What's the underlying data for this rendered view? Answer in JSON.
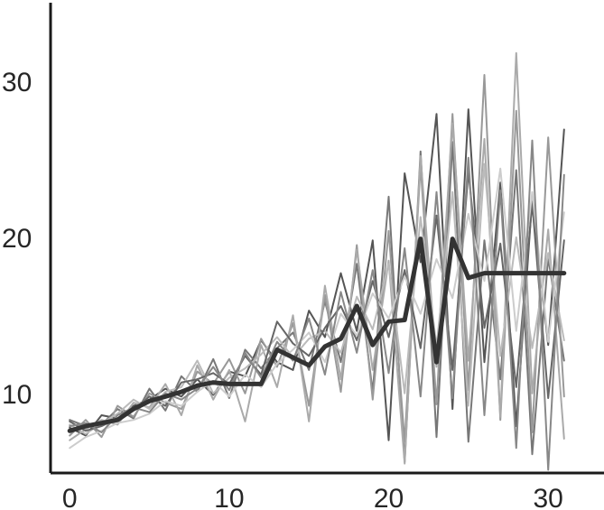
{
  "chart_data": {
    "type": "line",
    "title": "",
    "xlabel": "",
    "ylabel": "",
    "x": [
      0,
      1,
      2,
      3,
      4,
      5,
      6,
      7,
      8,
      9,
      10,
      11,
      12,
      13,
      14,
      15,
      16,
      17,
      18,
      19,
      20,
      21,
      22,
      23,
      24,
      25,
      26,
      27,
      28,
      29,
      30,
      31
    ],
    "xlim": [
      -1.2,
      33.5
    ],
    "ylim": [
      4.9,
      35.2
    ],
    "xticks": [
      0,
      10,
      20,
      30
    ],
    "yticks": [
      10,
      20,
      30
    ],
    "xtick_labels": [
      "0",
      "10",
      "20",
      "30"
    ],
    "ytick_labels": [
      "10",
      "20",
      "30"
    ],
    "grid": false,
    "series": [
      {
        "color": "#333333",
        "width": 5,
        "values": [
          7.6,
          7.9,
          8.1,
          8.3,
          9.0,
          9.5,
          9.8,
          10.1,
          10.5,
          10.7,
          10.6,
          10.6,
          10.6,
          12.8,
          12.3,
          11.8,
          13.0,
          13.5,
          15.6,
          13.1,
          14.6,
          14.7,
          19.9,
          12.0,
          19.9,
          17.4,
          17.7,
          17.7,
          17.7,
          17.7,
          17.7,
          17.7
        ]
      },
      {
        "color": "#555555",
        "width": 2,
        "values": [
          7.8,
          7.3,
          8.6,
          8.4,
          9.2,
          9.6,
          10.3,
          9.8,
          10.9,
          9.9,
          11.4,
          11.1,
          13.4,
          12.0,
          11.5,
          15.3,
          13.6,
          17.7,
          14.0,
          19.8,
          7.0,
          24.1,
          18.4,
          27.9,
          9.0,
          28.2,
          12.0,
          23.5,
          7.9,
          22.5,
          13.1,
          26.9
        ]
      },
      {
        "color": "#777777",
        "width": 2,
        "values": [
          8.3,
          7.9,
          8.0,
          9.0,
          8.4,
          10.3,
          8.9,
          11.1,
          10.1,
          12.2,
          9.7,
          12.8,
          11.6,
          12.9,
          13.9,
          11.5,
          15.9,
          12.0,
          18.3,
          10.1,
          22.6,
          5.6,
          25.5,
          7.2,
          26.1,
          6.9,
          19.8,
          10.9,
          24.3,
          6.1,
          18.7,
          12.1
        ]
      },
      {
        "color": "#999999",
        "width": 2,
        "values": [
          7.3,
          8.3,
          7.2,
          9.2,
          8.5,
          10.0,
          9.4,
          9.0,
          11.4,
          10.6,
          12.2,
          10.0,
          13.5,
          11.7,
          14.5,
          9.2,
          16.3,
          10.1,
          19.5,
          9.6,
          20.4,
          6.9,
          24.6,
          9.3,
          27.9,
          10.2,
          30.4,
          8.3,
          28.1,
          7.5,
          26.4,
          9.8
        ]
      },
      {
        "color": "#aaaaaa",
        "width": 2,
        "values": [
          7.0,
          7.7,
          8.3,
          8.0,
          9.4,
          9.1,
          10.6,
          8.6,
          11.8,
          9.6,
          11.5,
          8.2,
          13.1,
          10.4,
          15.0,
          8.2,
          16.9,
          10.9,
          19.2,
          11.5,
          18.5,
          5.5,
          25.2,
          11.7,
          27.3,
          12.1,
          26.3,
          8.5,
          31.8,
          10.0,
          20.5,
          7.1
        ]
      },
      {
        "color": "#bbbbbb",
        "width": 2,
        "values": [
          8.0,
          7.4,
          8.1,
          8.7,
          9.6,
          9.0,
          10.1,
          10.4,
          12.1,
          10.0,
          11.0,
          11.6,
          12.5,
          13.6,
          12.3,
          13.5,
          14.0,
          12.6,
          16.2,
          14.1,
          18.3,
          10.0,
          21.3,
          13.0,
          22.9,
          9.2,
          24.7,
          12.4,
          20.0,
          12.9,
          19.0,
          13.4
        ]
      },
      {
        "color": "#666666",
        "width": 2,
        "values": [
          8.2,
          7.6,
          7.9,
          8.4,
          8.9,
          9.8,
          9.2,
          10.7,
          10.9,
          11.3,
          10.6,
          12.4,
          11.2,
          14.6,
          13.2,
          12.4,
          14.2,
          15.6,
          13.4,
          17.2,
          13.6,
          17.9,
          12.9,
          21.4,
          11.5,
          24.2,
          14.2,
          19.6,
          10.4,
          22.2,
          9.7,
          19.8
        ]
      },
      {
        "color": "#cccccc",
        "width": 2,
        "values": [
          6.5,
          7.2,
          7.6,
          8.1,
          8.3,
          8.7,
          9.5,
          9.2,
          10.1,
          10.8,
          9.8,
          11.2,
          10.4,
          11.9,
          12.8,
          13.9,
          12.0,
          15.1,
          13.7,
          16.4,
          14.8,
          17.5,
          15.1,
          18.6,
          16.1,
          21.5,
          17.2,
          24.4,
          14.0,
          22.9,
          13.3,
          21.6
        ]
      },
      {
        "color": "#888888",
        "width": 2,
        "values": [
          7.9,
          8.1,
          7.5,
          8.6,
          9.1,
          8.8,
          10.0,
          9.6,
          10.3,
          11.7,
          10.2,
          12.6,
          11.0,
          13.3,
          12.1,
          14.8,
          11.2,
          16.5,
          12.6,
          17.9,
          11.3,
          19.3,
          9.8,
          22.9,
          9.7,
          25.1,
          8.6,
          23.0,
          6.5,
          26.2,
          5.1,
          24.0
        ]
      }
    ]
  }
}
